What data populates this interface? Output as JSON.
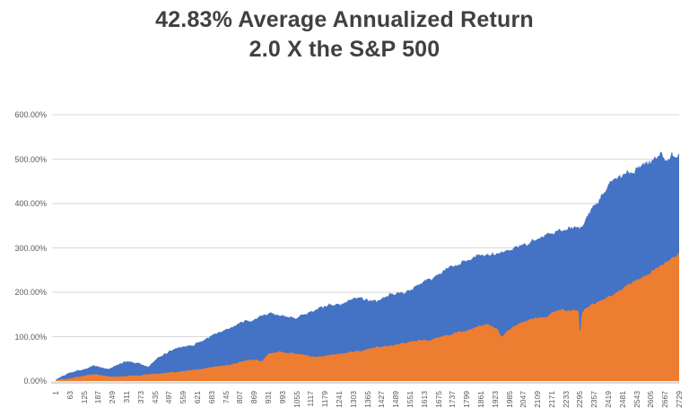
{
  "title": {
    "line1": "42.83% Average Annualized Return",
    "line2": "2.0 X the S&P 500"
  },
  "colors": {
    "blue_series": "#4472C4",
    "orange_series": "#ED7D31",
    "gridline": "#D9D9D9",
    "axis_line": "#D9D9D9",
    "axis_text": "#595959",
    "title_text": "#404040",
    "background": "#FFFFFF"
  },
  "chart_data": {
    "type": "area",
    "title": "42.83% Average Annualized Return 2.0 X the S&P 500",
    "legend": "none",
    "grid": true,
    "x_range": [
      1,
      2729
    ],
    "ylim_pct": [
      0,
      600
    ],
    "y_tick_labels": [
      "600.00%",
      "500.00%",
      "400.00%",
      "300.00%",
      "200.00%",
      "100.00%",
      "0.00%"
    ],
    "y_tick_values": [
      600,
      500,
      400,
      300,
      200,
      100,
      0
    ],
    "x_tick_labels": [
      "1",
      "63",
      "125",
      "187",
      "249",
      "311",
      "373",
      "435",
      "497",
      "559",
      "621",
      "683",
      "745",
      "807",
      "869",
      "931",
      "993",
      "1055",
      "1117",
      "1179",
      "1241",
      "1303",
      "1365",
      "1427",
      "1489",
      "1551",
      "1613",
      "1675",
      "1737",
      "1799",
      "1861",
      "1923",
      "1985",
      "2047",
      "2109",
      "2171",
      "2233",
      "2295",
      "2357",
      "2419",
      "2481",
      "2543",
      "2605",
      "2667",
      "2729"
    ],
    "series": [
      {
        "name": "blue",
        "color": "#4472C4",
        "x": [
          1,
          70,
          110,
          170,
          236,
          300,
          366,
          405,
          445,
          523,
          600,
          660,
          700,
          760,
          820,
          878,
          937,
          996,
          1055,
          1114,
          1173,
          1252,
          1331,
          1409,
          1488,
          1567,
          1646,
          1724,
          1803,
          1882,
          1941,
          1968,
          2000,
          2079,
          2157,
          2205,
          2236,
          2276,
          2295,
          2315,
          2354,
          2433,
          2512,
          2591,
          2650,
          2677,
          2709,
          2729
        ],
        "values": [
          3,
          22,
          26,
          34,
          27,
          44,
          40,
          31,
          50,
          75,
          82,
          95,
          108,
          118,
          133,
          141,
          152,
          148,
          139,
          158,
          168,
          175,
          186,
          181,
          195,
          211,
          231,
          255,
          272,
          288,
          295,
          292,
          300,
          313,
          333,
          345,
          333,
          352,
          348,
          360,
          390,
          448,
          475,
          491,
          512,
          505,
          512,
          518
        ]
      },
      {
        "name": "orange",
        "color": "#ED7D31",
        "x": [
          1,
          70,
          110,
          170,
          236,
          300,
          366,
          405,
          445,
          523,
          600,
          660,
          700,
          760,
          820,
          878,
          905,
          920,
          937,
          996,
          1055,
          1140,
          1173,
          1252,
          1331,
          1409,
          1488,
          1567,
          1646,
          1724,
          1803,
          1882,
          1925,
          1955,
          1975,
          2000,
          2079,
          2157,
          2205,
          2236,
          2276,
          2290,
          2295,
          2302,
          2315,
          2354,
          2433,
          2512,
          2591,
          2650,
          2677,
          2709,
          2729
        ],
        "values": [
          2,
          7,
          9,
          16,
          10,
          12,
          13,
          14,
          17,
          20,
          26,
          29,
          33,
          36,
          45,
          48,
          44,
          55,
          64,
          65,
          62,
          54,
          56,
          63,
          67,
          77,
          81,
          90,
          94,
          104,
          114,
          126,
          120,
          98,
          112,
          122,
          140,
          146,
          162,
          158,
          160,
          160,
          95,
          150,
          163,
          175,
          192,
          219,
          239,
          262,
          270,
          280,
          290
        ]
      }
    ]
  }
}
